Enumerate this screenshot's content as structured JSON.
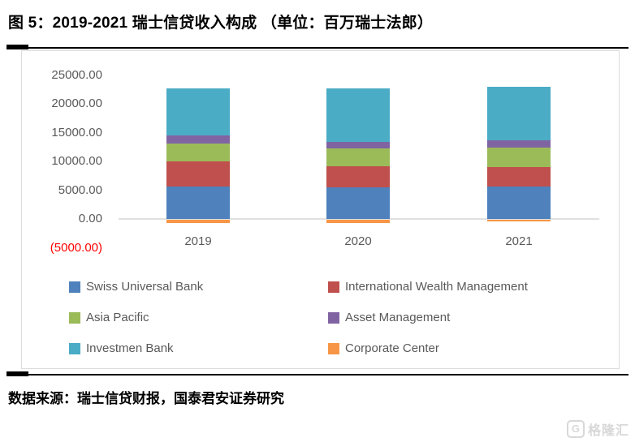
{
  "title": "图 5：2019-2021 瑞士信贷收入构成 （单位：百万瑞士法郎）",
  "source": "数据来源：瑞士信贷财报，国泰君安证券研究",
  "watermark": {
    "icon": "G",
    "text": "格隆汇"
  },
  "colors": {
    "series_blue": "#4F81BD",
    "series_red": "#C0504D",
    "series_green": "#9BBB59",
    "series_purple": "#8064A2",
    "series_teal": "#4BACC6",
    "series_orange": "#F79646",
    "tick_text": "#595959",
    "negative_tick_text": "#FF0000",
    "axis_line": "#E0E0E0",
    "watermark_gray": "#D8D8D8"
  },
  "chart_data": {
    "type": "bar",
    "stacked": true,
    "title": "图 5：2019-2021 瑞士信贷收入构成 （单位：百万瑞士法郎）",
    "xlabel": "",
    "ylabel": "",
    "categories": [
      "2019",
      "2020",
      "2021"
    ],
    "series": [
      {
        "name": "Swiss Universal Bank",
        "color": "#4F81BD",
        "values": [
          5700,
          5450,
          5650
        ]
      },
      {
        "name": "International Wealth Management",
        "color": "#C0504D",
        "values": [
          4250,
          3650,
          3400
        ]
      },
      {
        "name": "Asia Pacific",
        "color": "#9BBB59",
        "values": [
          3100,
          3150,
          3300
        ]
      },
      {
        "name": "Asset Management",
        "color": "#8064A2",
        "values": [
          1450,
          1100,
          1350
        ]
      },
      {
        "name": "Investmen Bank",
        "color": "#4BACC6",
        "values": [
          8150,
          9350,
          9200
        ]
      },
      {
        "name": "Corporate Center",
        "color": "#F79646",
        "values": [
          -550,
          -550,
          -250
        ]
      }
    ],
    "y_ticks": [
      "25000.00",
      "20000.00",
      "15000.00",
      "10000.00",
      "5000.00",
      "0.00",
      "(5000.00)"
    ],
    "ylim": [
      -5000,
      25000
    ],
    "tick_interval": 5000,
    "grid": false,
    "legend_position": "bottom"
  }
}
